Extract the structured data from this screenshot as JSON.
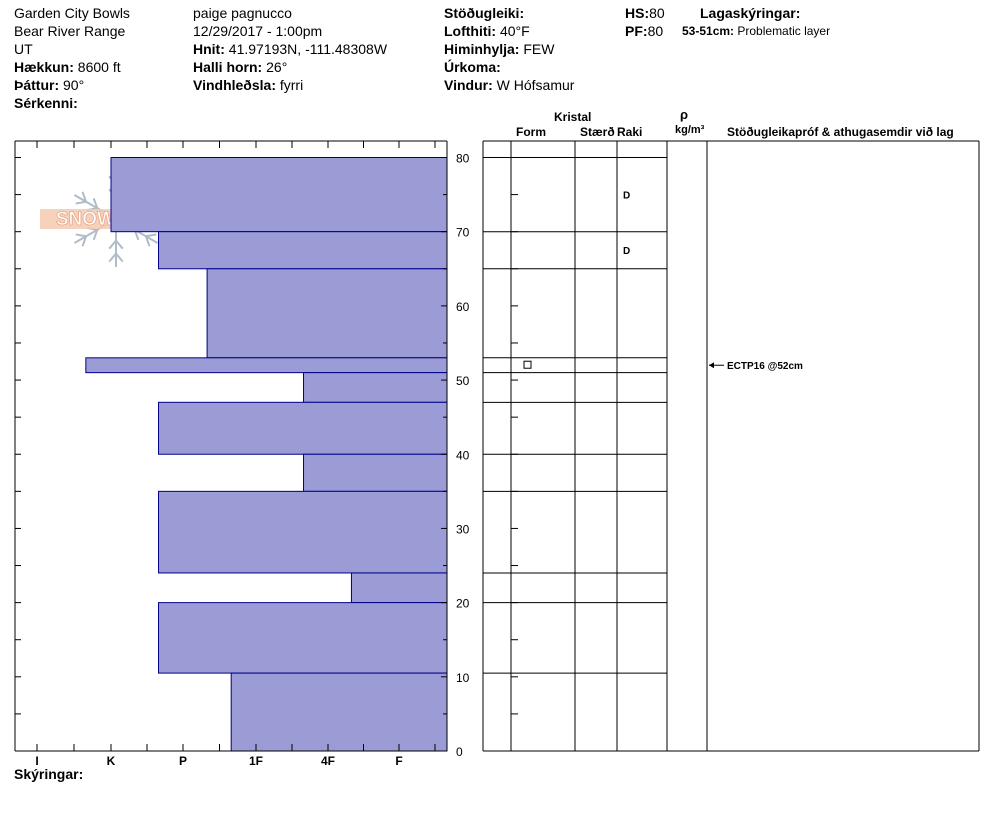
{
  "header": {
    "location": "Garden City Bowls",
    "range": "Bear River Range",
    "state": "UT",
    "elevation_label": "Hækkun:",
    "elevation_value": "8600 ft",
    "aspect_label": "Þáttur:",
    "aspect_value": "90°",
    "features_label": "Sérkenni:",
    "observer": "paige pagnucco",
    "datetime": "12/29/2017 - 1:00pm",
    "coords_label": "Hnit:",
    "coords_value": "41.97193N, -111.48308W",
    "slope_label": "Halli horn:",
    "slope_value": "26°",
    "wind_loading_label": "Vindhleðsla:",
    "wind_loading_value": "fyrri",
    "stability_label": "Stöðugleiki:",
    "air_temp_label": "Lofthiti:",
    "air_temp_value": "40°F",
    "sky_label": "Himinhylja:",
    "sky_value": "FEW",
    "precip_label": "Úrkoma:",
    "wind_label": "Vindur:",
    "wind_value": "W Hófsamur",
    "hs_label": "HS:",
    "hs_value": "80",
    "pf_label": "PF:",
    "pf_value": "80",
    "layer_notes_label": "Lagaskýringar:",
    "layer_note_range": "53-51cm:",
    "layer_note_text": "Problematic layer"
  },
  "logo": {
    "text": "SNOW PILOT"
  },
  "table_headers": {
    "crystal": "Kristal",
    "form": "Form",
    "size": "Stærð",
    "moisture": "Raki",
    "rho": "ρ",
    "density_unit": "kg/m³",
    "stability_tests": "Stöðugleikapróf & athugasemdir við lag"
  },
  "footer": {
    "notes_label": "Skýringar:"
  },
  "stability_test": {
    "label": "ECTP16 @52cm",
    "depth": 52
  },
  "colors": {
    "hardness_fill": "#9b9bd6",
    "hardness_stroke": "#00008b"
  },
  "chart_data": {
    "type": "bar",
    "orientation": "horizontal",
    "title": "",
    "y_axis": {
      "label": "",
      "range": [
        0,
        80
      ],
      "ticks": [
        0,
        10,
        20,
        30,
        40,
        50,
        60,
        70,
        80
      ]
    },
    "x_axis": {
      "categories": [
        "I",
        "K",
        "P",
        "1F",
        "4F",
        "F"
      ]
    },
    "hardness_layers": [
      {
        "top": 80,
        "bottom": 70,
        "hardness_index": 1.0
      },
      {
        "top": 70,
        "bottom": 65,
        "hardness_index": 1.66
      },
      {
        "top": 65,
        "bottom": 53,
        "hardness_index": 2.33
      },
      {
        "top": 53,
        "bottom": 51,
        "hardness_index": 0.66
      },
      {
        "top": 51,
        "bottom": 47,
        "hardness_index": 3.66
      },
      {
        "top": 47,
        "bottom": 40,
        "hardness_index": 1.66
      },
      {
        "top": 40,
        "bottom": 35,
        "hardness_index": 3.66
      },
      {
        "top": 35,
        "bottom": 24,
        "hardness_index": 1.66
      },
      {
        "top": 24,
        "bottom": 20,
        "hardness_index": 4.33
      },
      {
        "top": 20,
        "bottom": 10.5,
        "hardness_index": 1.66
      },
      {
        "top": 10.5,
        "bottom": 0,
        "hardness_index": 2.66
      }
    ],
    "layer_boundaries": [
      80,
      70,
      65,
      53,
      51,
      47,
      40,
      35,
      24,
      20,
      10.5
    ],
    "moisture": [
      {
        "depth": 75,
        "value": "D"
      },
      {
        "depth": 67.5,
        "value": "D"
      }
    ],
    "crystal_forms": [
      {
        "depth": 52,
        "symbol": "□"
      }
    ]
  }
}
